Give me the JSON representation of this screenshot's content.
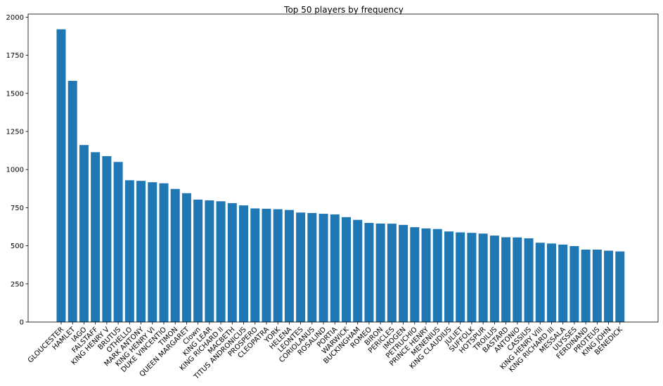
{
  "chart_data": {
    "type": "bar",
    "title": "Top 50 players by frequency",
    "xlabel": "",
    "ylabel": "",
    "ylim": [
      0,
      2020
    ],
    "yticks": [
      0,
      250,
      500,
      750,
      1000,
      1250,
      1500,
      1750,
      2000
    ],
    "bar_color": "#1f77b4",
    "grid": false,
    "categories": [
      "GLOUCESTER",
      "HAMLET",
      "IAGO",
      "FALSTAFF",
      "KING HENRY V",
      "BRUTUS",
      "OTHELLO",
      "MARK ANTONY",
      "KING HENRY VI",
      "DUKE VINCENTIO",
      "TIMON",
      "QUEEN MARGARET",
      "Clown",
      "KING LEAR",
      "KING RICHARD II",
      "MACBETH",
      "TITUS ANDRONICUS",
      "PROSPERO",
      "CLEOPATRA",
      "YORK",
      "HELENA",
      "LEONTES",
      "CORIOLANUS",
      "ROSALIND",
      "PORTIA",
      "WARWICK",
      "BUCKINGHAM",
      "ROMEO",
      "BIRON",
      "PERICLES",
      "IMOGEN",
      "PETRUCHIO",
      "PRINCE HENRY",
      "MENENIUS",
      "KING CLAUDIUS",
      "JULIET",
      "SUFFOLK",
      "HOTSPUR",
      "TROILUS",
      "BASTARD",
      "ANTONIO",
      "CASSIUS",
      "KING HENRY VIII",
      "KING RICHARD III",
      "MESSALA",
      "ULYSSES",
      "FERDINAND",
      "PROTEUS",
      "KING JOHN",
      "BENEDICK"
    ],
    "values": [
      1920,
      1582,
      1161,
      1114,
      1088,
      1050,
      930,
      926,
      917,
      910,
      873,
      845,
      803,
      798,
      792,
      780,
      765,
      745,
      743,
      740,
      735,
      718,
      715,
      710,
      706,
      688,
      670,
      650,
      646,
      645,
      637,
      622,
      614,
      610,
      594,
      588,
      585,
      580,
      567,
      556,
      555,
      549,
      520,
      515,
      508,
      498,
      475,
      475,
      468,
      463
    ]
  }
}
